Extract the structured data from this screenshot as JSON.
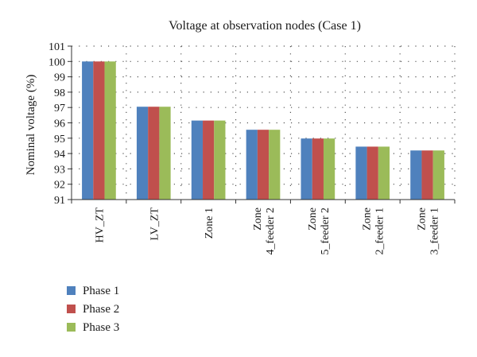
{
  "chart_data": {
    "type": "bar",
    "title": "Voltage at observation nodes (Case 1)",
    "xlabel": "",
    "ylabel": "Nominal voltage (%)",
    "ylim": [
      91,
      101
    ],
    "yticks": [
      91,
      92,
      93,
      94,
      95,
      96,
      97,
      98,
      99,
      100,
      101
    ],
    "grid": "dotted horizontal and vertical",
    "legend_position": "bottom-left",
    "categories": [
      [
        "HV_ZT"
      ],
      [
        "LV_ZT"
      ],
      [
        "Zone 1"
      ],
      [
        "Zone",
        "4_feeder 2"
      ],
      [
        "Zone",
        "5_feeder 2"
      ],
      [
        "Zone",
        "2_feeder 1"
      ],
      [
        "Zone",
        "3_feeder 1"
      ]
    ],
    "series": [
      {
        "name": "Phase 1",
        "color": "#4f81bd",
        "values": [
          100.0,
          97.05,
          96.15,
          95.55,
          94.98,
          94.45,
          94.2
        ]
      },
      {
        "name": "Phase 2",
        "color": "#c0504d",
        "values": [
          100.0,
          97.05,
          96.15,
          95.55,
          94.98,
          94.45,
          94.2
        ]
      },
      {
        "name": "Phase 3",
        "color": "#9bbb59",
        "values": [
          100.0,
          97.05,
          96.15,
          95.55,
          94.98,
          94.45,
          94.2
        ]
      }
    ]
  }
}
